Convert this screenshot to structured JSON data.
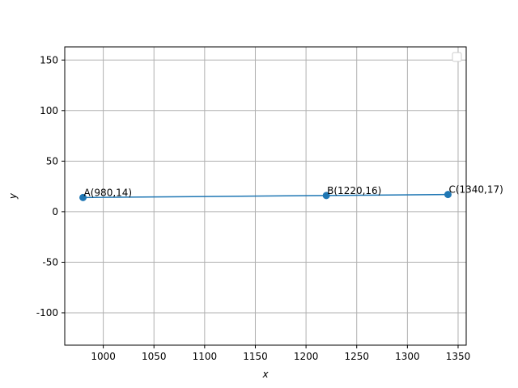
{
  "chart_data": {
    "type": "line",
    "title": "",
    "xlabel": "x",
    "ylabel": "y",
    "xlim": [
      962,
      1358
    ],
    "ylim": [
      -132,
      163
    ],
    "xticks": [
      1000,
      1050,
      1100,
      1150,
      1200,
      1250,
      1300,
      1350
    ],
    "yticks": [
      -100,
      -50,
      0,
      50,
      100,
      150
    ],
    "grid": true,
    "legend": "top-right",
    "color": "#1f77b4",
    "series": [
      {
        "x": [
          980,
          1220,
          1340
        ],
        "y": [
          14,
          16,
          17
        ],
        "labels": [
          "A(980,14)",
          "B(1220,16)",
          "C(1340,17)"
        ]
      }
    ]
  }
}
